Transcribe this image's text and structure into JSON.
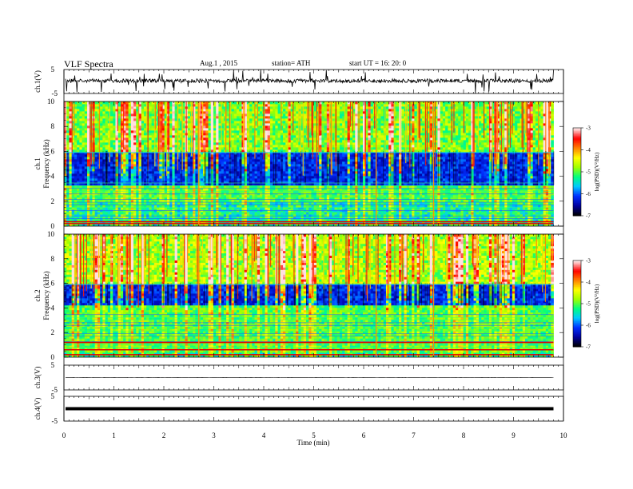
{
  "header": {
    "title": "VLF  Spectra",
    "date": "Aug.1  , 2015",
    "station": "station= ATH",
    "start": "start  UT  =   16: 20: 0"
  },
  "colors": {
    "colormap": [
      "#000000",
      "#0000a0",
      "#0030ff",
      "#00c8ff",
      "#00ff80",
      "#a0ff00",
      "#ffff00",
      "#ff8000",
      "#ff0000",
      "#ffe0e0"
    ],
    "trace": "#000000",
    "band_dark": "#0000a0"
  },
  "chart_data": [
    {
      "type": "line",
      "name": "ch1_waveform",
      "ylabel": "ch.1(V)",
      "ylim": [
        -5,
        5
      ],
      "yticks": [
        "5",
        "-5"
      ],
      "description": "Noisy waveform around ~0 V with frequent sferic spikes",
      "baseline": 0.3
    },
    {
      "type": "heatmap",
      "name": "ch1_spectrogram",
      "ylabel": "ch.1\nFrequency  (kHz)",
      "ylim": [
        0,
        10
      ],
      "yticks": [
        "0",
        "2",
        "4",
        "6",
        "8",
        "10"
      ],
      "colorbar": {
        "label": "log(PSD)(V²/Hz)",
        "range": [
          -7,
          -3
        ],
        "ticks": [
          "-3",
          "-4",
          "-5",
          "-6",
          "-7"
        ]
      },
      "dark_band_khz": [
        3.3,
        6.0
      ],
      "bright_band_khz": [
        2.0,
        3.3
      ],
      "strong_lines_khz": [
        0.2,
        0.35
      ]
    },
    {
      "type": "heatmap",
      "name": "ch2_spectrogram",
      "ylabel": "ch.2\nFrequency  (kHz)",
      "ylim": [
        0,
        10
      ],
      "yticks": [
        "0",
        "2",
        "4",
        "6",
        "8",
        "10"
      ],
      "colorbar": {
        "label": "log(PSD)(V²/Hz)",
        "range": [
          -7,
          -3
        ],
        "ticks": [
          "-3",
          "-4",
          "-5",
          "-6",
          "-7"
        ]
      },
      "dark_band_khz": [
        4.2,
        6.0
      ],
      "bright_band_khz": [
        0.3,
        4.2
      ],
      "strong_lines_khz": [
        0.2,
        0.6,
        1.2
      ]
    },
    {
      "type": "line",
      "name": "ch3_waveform",
      "ylabel": "ch.3(V)",
      "ylim": [
        -5,
        5
      ],
      "yticks": [
        "5",
        "-5"
      ],
      "baseline": 0.0
    },
    {
      "type": "line",
      "name": "ch4_waveform",
      "ylabel": "ch.4(V)",
      "ylim": [
        -5,
        5
      ],
      "yticks": [
        "5",
        "-5"
      ],
      "baseline": 0.0
    }
  ],
  "xaxis": {
    "label": "Time  (min)",
    "range": [
      0,
      10
    ],
    "data_end": 9.8,
    "ticks": [
      "0",
      "1",
      "2",
      "3",
      "4",
      "5",
      "6",
      "7",
      "8",
      "9",
      "10"
    ]
  }
}
